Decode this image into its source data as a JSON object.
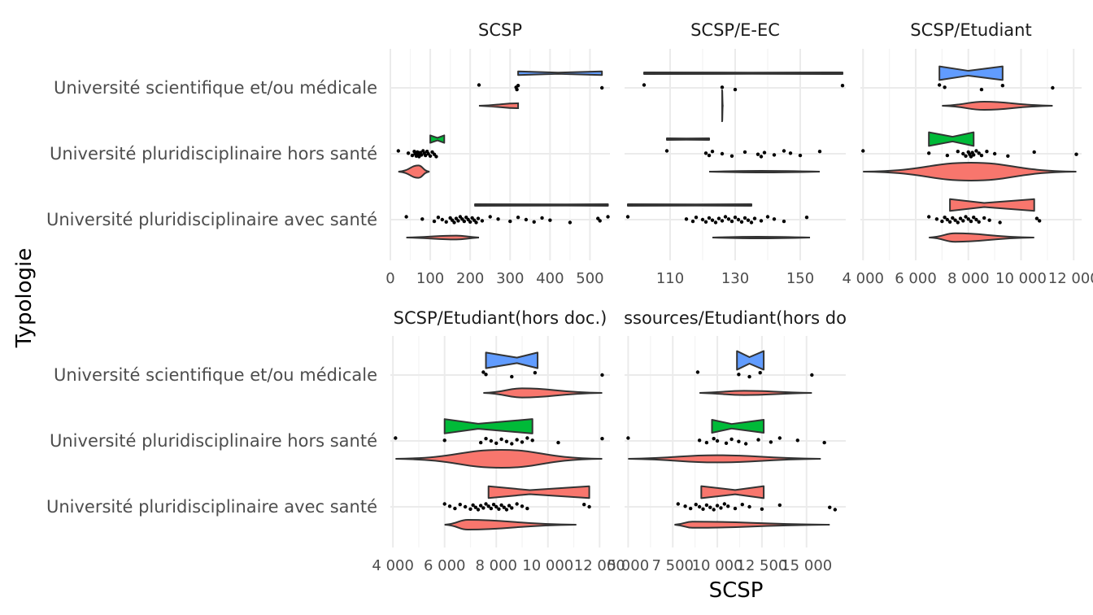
{
  "chart_data": {
    "type": "raincloud",
    "x_label": "SCSP",
    "y_label": "Typologie",
    "categories": [
      "Université scientifique et/ou médicale",
      "Université pluridisciplinaire hors santé",
      "Université pluridisciplinaire avec santé"
    ],
    "series_colors": [
      "#619CFF",
      "#00BA38",
      "#F8766D"
    ],
    "grid": true,
    "panels": [
      {
        "title": "SCSP",
        "xlim": [
          0,
          550
        ],
        "ticks": [
          0,
          100,
          200,
          300,
          400,
          500
        ],
        "tick_labels": [
          "0",
          "100",
          "200",
          "300",
          "400",
          "500"
        ],
        "groups": [
          {
            "points": [
              222,
              315,
              317,
              320,
              530
            ],
            "violin": {
              "min": 222,
              "max": 320,
              "mid": 320,
              "w": 0.15
            },
            "box": {
              "q1": 320,
              "med": 420,
              "q3": 530,
              "w": 0.11
            }
          },
          {
            "points": [
              20,
              45,
              55,
              60,
              62,
              65,
              68,
              70,
              72,
              75,
              78,
              82,
              85,
              88,
              92,
              95,
              100,
              105,
              110,
              115
            ],
            "violin": {
              "min": 20,
              "max": 98,
              "mid": 70,
              "w": 0.38
            },
            "box": {
              "q1": 100,
              "med": 118,
              "q3": 135,
              "w": 0.23
            }
          },
          {
            "points": [
              40,
              80,
              110,
              120,
              130,
              140,
              150,
              155,
              160,
              165,
              170,
              175,
              180,
              185,
              190,
              195,
              200,
              205,
              210,
              215,
              220,
              230,
              250,
              270,
              300,
              320,
              340,
              360,
              380,
              400,
              450,
              520,
              525,
              545
            ],
            "violin": {
              "min": 40,
              "max": 222,
              "mid": 165,
              "w": 0.12
            },
            "box": {
              "q1": 212,
              "med": 440,
              "q3": 545,
              "w": 0.04
            }
          }
        ]
      },
      {
        "title": "SCSP/E-EC",
        "xlim": [
          96,
          164
        ],
        "ticks": [
          110,
          130,
          150
        ],
        "tick_labels": [
          "110",
          "130",
          "150"
        ],
        "groups": [
          {
            "points": [
              102,
              126,
              130,
              163
            ],
            "violin": {
              "min": 126,
              "max": 126.2,
              "mid": 126,
              "w": 0.95
            },
            "box": {
              "q1": 102,
              "med": 135,
              "q3": 163,
              "w": 0.02
            }
          },
          {
            "points": [
              109,
              121,
              122,
              123,
              126,
              129,
              133,
              137,
              138,
              139,
              142,
              145,
              147,
              150,
              156
            ],
            "violin": {
              "min": 122,
              "max": 156,
              "mid": 138,
              "w": 0.03
            },
            "box": {
              "q1": 109,
              "med": 115,
              "q3": 122,
              "w": 0.03
            }
          },
          {
            "points": [
              97,
              115,
              117,
              118,
              120,
              121,
              122,
              123,
              124,
              125,
              126,
              127,
              128,
              129,
              130,
              131,
              132,
              133,
              134,
              135,
              136,
              138,
              140,
              142,
              145,
              152
            ],
            "violin": {
              "min": 123,
              "max": 153,
              "mid": 137,
              "w": 0.03
            },
            "box": {
              "q1": 97,
              "med": 118,
              "q3": 135,
              "w": 0.03
            }
          }
        ]
      },
      {
        "title": "SCSP/Etudiant",
        "xlim": [
          3900,
          12300
        ],
        "ticks": [
          4000,
          6000,
          8000,
          10000,
          12000
        ],
        "tick_labels": [
          "4 000",
          "6 000",
          "8 000",
          "10 000",
          "12 000"
        ],
        "groups": [
          {
            "points": [
              6900,
              7100,
              8500,
              9300,
              11200
            ],
            "violin": {
              "min": 7000,
              "max": 11200,
              "mid": 8600,
              "w": 0.25
            },
            "box": {
              "q1": 6900,
              "med": 8000,
              "q3": 9300,
              "w": 0.42
            }
          },
          {
            "points": [
              4000,
              6500,
              7200,
              7600,
              7800,
              7900,
              8000,
              8050,
              8100,
              8150,
              8200,
              8300,
              8400,
              8500,
              8700,
              9000,
              9500,
              10500,
              12100
            ],
            "violin": {
              "min": 4000,
              "max": 12100,
              "mid": 8100,
              "w": 0.55
            },
            "box": {
              "q1": 6500,
              "med": 7400,
              "q3": 8200,
              "w": 0.42
            }
          },
          {
            "points": [
              6500,
              6800,
              7000,
              7100,
              7200,
              7300,
              7400,
              7500,
              7600,
              7700,
              7800,
              7900,
              8000,
              8100,
              8200,
              8300,
              8400,
              8600,
              8800,
              9200,
              10600,
              10700
            ],
            "violin": {
              "min": 6500,
              "max": 10500,
              "mid": 7500,
              "w": 0.26
            },
            "box": {
              "q1": 7300,
              "med": 8600,
              "q3": 10500,
              "w": 0.36
            }
          }
        ]
      },
      {
        "title": "SCSP/Etudiant(hors doc.)",
        "xlim": [
          3900,
          12400
        ],
        "ticks": [
          4000,
          6000,
          8000,
          10000,
          12000
        ],
        "tick_labels": [
          "4 000",
          "6 000",
          "8 000",
          "10 000",
          "12 000"
        ],
        "groups": [
          {
            "points": [
              7500,
              7600,
              8600,
              9500,
              12100
            ],
            "violin": {
              "min": 7500,
              "max": 12100,
              "mid": 9000,
              "w": 0.28
            },
            "box": {
              "q1": 7600,
              "med": 8800,
              "q3": 9600,
              "w": 0.48
            }
          },
          {
            "points": [
              4100,
              6000,
              7400,
              7600,
              7800,
              8000,
              8200,
              8400,
              8600,
              8800,
              9000,
              9200,
              9400,
              10400,
              12100
            ],
            "violin": {
              "min": 4100,
              "max": 12100,
              "mid": 8200,
              "w": 0.55
            },
            "box": {
              "q1": 6000,
              "med": 7300,
              "q3": 9400,
              "w": 0.44
            }
          },
          {
            "points": [
              6000,
              6200,
              6400,
              6600,
              6800,
              7000,
              7100,
              7200,
              7300,
              7400,
              7500,
              7600,
              7700,
              7800,
              7900,
              8000,
              8100,
              8200,
              8300,
              8400,
              8500,
              8600,
              8800,
              9000,
              9200,
              11400,
              11600
            ],
            "violin": {
              "min": 6000,
              "max": 11100,
              "mid": 6900,
              "w": 0.3
            },
            "box": {
              "q1": 7700,
              "med": 9300,
              "q3": 11600,
              "w": 0.36
            }
          }
        ]
      },
      {
        "title": "SCSP+Ressources/Etudiant(hors doc.)",
        "title_display": "ssources/Etudiant(hors do",
        "xlim": [
          4800,
          17200
        ],
        "ticks": [
          5000,
          7500,
          10000,
          12500,
          15000
        ],
        "tick_labels": [
          "5 000",
          "7 500",
          "10 000",
          "12 500",
          "15 000"
        ],
        "groups": [
          {
            "points": [
              8900,
              11200,
              11800,
              12400,
              15300
            ],
            "violin": {
              "min": 9000,
              "max": 15300,
              "mid": 11500,
              "w": 0.13
            },
            "box": {
              "q1": 11100,
              "med": 11800,
              "q3": 12600,
              "w": 0.57
            }
          },
          {
            "points": [
              5000,
              9000,
              9400,
              9800,
              10000,
              10500,
              10800,
              11200,
              11600,
              12300,
              13000,
              13500,
              14500,
              16000
            ],
            "violin": {
              "min": 5000,
              "max": 15800,
              "mid": 9900,
              "w": 0.22
            },
            "box": {
              "q1": 9700,
              "med": 10800,
              "q3": 12600,
              "w": 0.4
            }
          },
          {
            "points": [
              7800,
              8200,
              8500,
              8800,
              9000,
              9200,
              9400,
              9600,
              9800,
              10000,
              10200,
              10400,
              10600,
              11000,
              11400,
              11800,
              12500,
              13500,
              16300,
              16600
            ],
            "violin": {
              "min": 7600,
              "max": 16300,
              "mid": 8600,
              "w": 0.19
            },
            "box": {
              "q1": 9100,
              "med": 11000,
              "q3": 12600,
              "w": 0.37
            }
          }
        ]
      }
    ]
  }
}
